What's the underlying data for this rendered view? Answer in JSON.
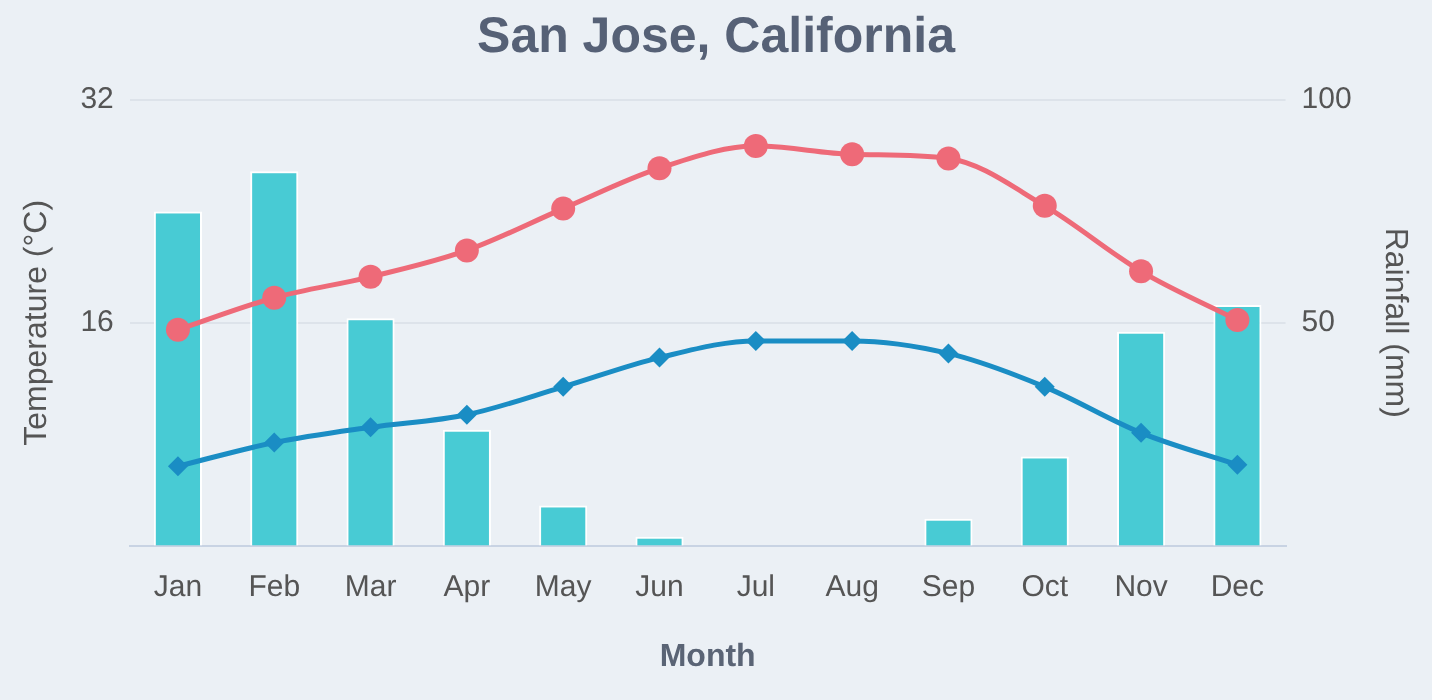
{
  "chart_data": {
    "type": "line",
    "title": "San Jose, California",
    "xlabel": "Month",
    "ylabel": "Temperature (°C)",
    "y2label": "Rainfall (mm)",
    "categories": [
      "Jan",
      "Feb",
      "Mar",
      "Apr",
      "May",
      "Jun",
      "Jul",
      "Aug",
      "Sep",
      "Oct",
      "Nov",
      "Dec"
    ],
    "series": [
      {
        "type": "bar",
        "axis": "y2",
        "color": "#48cbd4",
        "values": [
          75,
          84,
          51,
          26,
          9,
          2,
          0,
          0,
          6,
          20,
          48,
          54
        ]
      },
      {
        "color": "#ee6a78",
        "marker": "circle",
        "values": [
          15.5,
          17.8,
          19.3,
          21.2,
          24.2,
          27.1,
          28.7,
          28.1,
          27.8,
          24.4,
          19.7,
          16.2
        ]
      },
      {
        "color": "#1a8dc4",
        "marker": "diamond",
        "values": [
          5.7,
          7.4,
          8.5,
          9.4,
          11.4,
          13.5,
          14.7,
          14.7,
          13.8,
          11.4,
          8.1,
          5.8
        ]
      }
    ],
    "ylim": [
      0,
      32
    ],
    "yticks": [
      16,
      32
    ],
    "y2lim": [
      0,
      100
    ],
    "y2ticks": [
      50,
      100
    ],
    "grid": "y",
    "legend": false
  }
}
